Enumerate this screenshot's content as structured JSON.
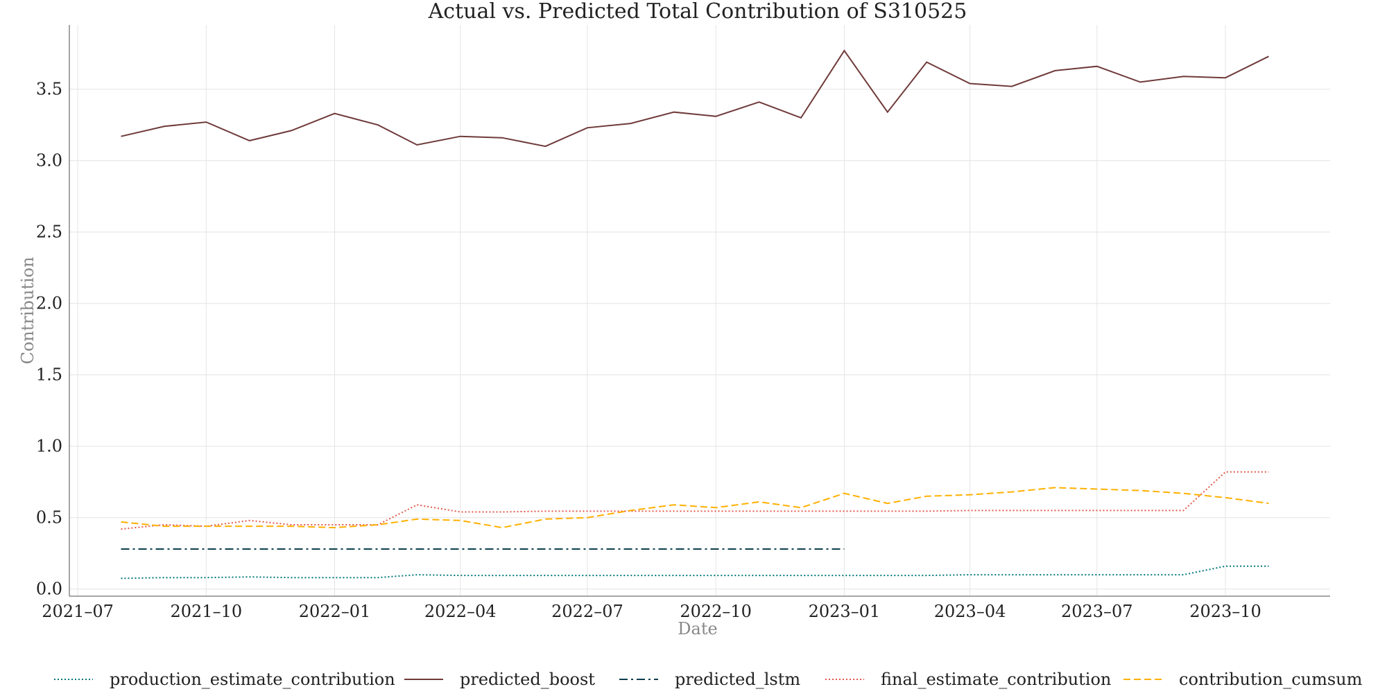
{
  "chart_data": {
    "type": "line",
    "title": "Actual vs. Predicted Total Contribution of S310525",
    "xlabel": "Date",
    "ylabel": "Contribution",
    "x_tick_labels": [
      "2021–07",
      "2021–10",
      "2022–01",
      "2022–04",
      "2022–07",
      "2022–10",
      "2023–01",
      "2023–04",
      "2023–07",
      "2023–10"
    ],
    "y_ticks": [
      0.0,
      0.5,
      1.0,
      1.5,
      2.0,
      2.5,
      3.0,
      3.5
    ],
    "y_tick_labels": [
      "0.0",
      "0.5",
      "1.0",
      "1.5",
      "2.0",
      "2.5",
      "3.0",
      "3.5"
    ],
    "ylim": [
      -0.05,
      3.95
    ],
    "xlim": [
      "2021-06-25",
      "2023-12-15"
    ],
    "grid": true,
    "legend_position": "bottom",
    "x": [
      "2021-08",
      "2021-09",
      "2021-10",
      "2021-11",
      "2021-12",
      "2022-01",
      "2022-02",
      "2022-03",
      "2022-04",
      "2022-05",
      "2022-06",
      "2022-07",
      "2022-08",
      "2022-09",
      "2022-10",
      "2022-11",
      "2022-12",
      "2023-01",
      "2023-02",
      "2023-03",
      "2023-04",
      "2023-05",
      "2023-06",
      "2023-07",
      "2023-08",
      "2023-09",
      "2023-10",
      "2023-11"
    ],
    "series": [
      {
        "name": "production_estimate_contribution",
        "color": "#00767a",
        "style": "dotted",
        "values": [
          0.075,
          0.08,
          0.08,
          0.085,
          0.08,
          0.08,
          0.08,
          0.1,
          0.095,
          0.095,
          0.095,
          0.095,
          0.095,
          0.095,
          0.095,
          0.095,
          0.095,
          0.095,
          0.095,
          0.095,
          0.1,
          0.1,
          0.1,
          0.1,
          0.1,
          0.1,
          0.16,
          0.16
        ]
      },
      {
        "name": "predicted_boost",
        "color": "#6f3a3a",
        "style": "solid",
        "values": [
          3.17,
          3.24,
          3.27,
          3.14,
          3.21,
          3.33,
          3.25,
          3.11,
          3.17,
          3.16,
          3.1,
          3.23,
          3.26,
          3.34,
          3.31,
          3.41,
          3.3,
          3.77,
          3.34,
          3.69,
          3.54,
          3.52,
          3.63,
          3.66,
          3.55,
          3.59,
          3.58,
          3.73
        ]
      },
      {
        "name": "predicted_lstm",
        "color": "#0b3d4d",
        "style": "dashdot",
        "values": [
          0.28,
          0.28,
          0.28,
          0.28,
          0.28,
          0.28,
          0.28,
          0.28,
          0.28,
          0.28,
          0.28,
          0.28,
          0.28,
          0.28,
          0.28,
          0.28,
          0.28,
          0.28,
          null,
          null,
          null,
          null,
          null,
          null,
          null,
          null,
          null,
          null
        ]
      },
      {
        "name": "final_estimate_contribution",
        "color": "#e0584a",
        "style": "dotted",
        "values": [
          0.42,
          0.45,
          0.44,
          0.48,
          0.45,
          0.45,
          0.45,
          0.59,
          0.54,
          0.54,
          0.545,
          0.545,
          0.545,
          0.545,
          0.545,
          0.545,
          0.545,
          0.545,
          0.545,
          0.545,
          0.55,
          0.55,
          0.55,
          0.55,
          0.55,
          0.55,
          0.82,
          0.82
        ]
      },
      {
        "name": "contribution_cumsum",
        "color": "#ffb000",
        "style": "dashed",
        "values": [
          0.47,
          0.44,
          0.44,
          0.44,
          0.44,
          0.43,
          0.45,
          0.49,
          0.48,
          0.43,
          0.49,
          0.5,
          0.55,
          0.59,
          0.57,
          0.61,
          0.57,
          0.67,
          0.6,
          0.65,
          0.66,
          0.68,
          0.71,
          0.7,
          0.69,
          0.67,
          0.64,
          0.6
        ]
      }
    ]
  }
}
